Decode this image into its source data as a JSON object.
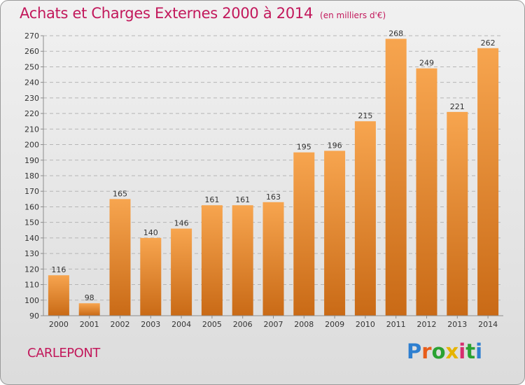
{
  "header": {
    "title": "Achats et Charges Externes 2000 à 2014",
    "subtitle": "(en milliers d'€)"
  },
  "footer": {
    "city": "CARLEPONT",
    "logo_text": "Proxiti"
  },
  "colors": {
    "title": "#c2185b",
    "bar_light": "#f7a54f",
    "bar_dark": "#c96a16",
    "grid": "#b5b5b5"
  },
  "chart_data": {
    "type": "bar",
    "title": "Achats et Charges Externes 2000 à 2014",
    "subtitle": "(en milliers d'€)",
    "xlabel": "",
    "ylabel": "",
    "categories": [
      "2000",
      "2001",
      "2002",
      "2003",
      "2004",
      "2005",
      "2006",
      "2007",
      "2008",
      "2009",
      "2010",
      "2011",
      "2012",
      "2013",
      "2014"
    ],
    "values": [
      116,
      98,
      165,
      140,
      146,
      161,
      161,
      163,
      195,
      196,
      215,
      268,
      249,
      221,
      262
    ],
    "ylim": [
      90,
      270
    ],
    "yticks": [
      90,
      100,
      110,
      120,
      130,
      140,
      150,
      160,
      170,
      180,
      190,
      200,
      210,
      220,
      230,
      240,
      250,
      260,
      270
    ],
    "grid": true,
    "data_labels": true,
    "legend": "none"
  }
}
